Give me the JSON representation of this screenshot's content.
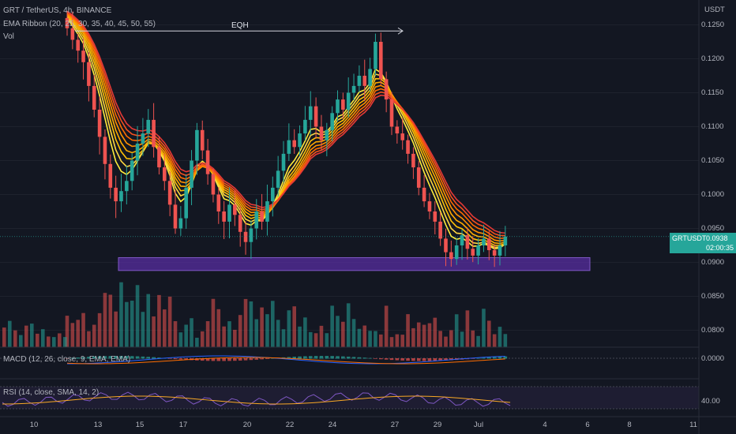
{
  "header": {
    "symbol_line": "GRT / TetherUS, 4h, BINANCE",
    "ema_ribbon": "EMA Ribbon (20, 25, 30, 35, 40, 45, 50, 55)",
    "vol": "Vol",
    "currency": "USDT"
  },
  "annotation": {
    "eqh": "EQH"
  },
  "price_axis": {
    "ticks": [
      "0.1250",
      "0.1200",
      "0.1150",
      "0.1100",
      "0.1050",
      "0.1000",
      "0.0950",
      "0.0900",
      "0.0850",
      "0.0800"
    ]
  },
  "macd": {
    "label": "MACD (12, 26, close, 9, EMA, EMA)",
    "value": "0.0000"
  },
  "rsi": {
    "label": "RSI (14, close, SMA, 14, 2)",
    "value": "40.00"
  },
  "time_axis": {
    "ticks": [
      "10",
      "13",
      "15",
      "17",
      "20",
      "22",
      "24",
      "27",
      "29",
      "Jul",
      "4",
      "6",
      "8",
      "11"
    ]
  },
  "current_price": {
    "symbol": "GRTUSDT",
    "price": "0.0938",
    "countdown": "02:00:35"
  },
  "colors": {
    "background": "#131722",
    "up": "#26a69a",
    "down": "#ef5350",
    "zone": "#5b2fa8",
    "tag": "#26a69a"
  },
  "chart_data": {
    "type": "candlestick",
    "interval": "4h",
    "y_range": [
      0.0775,
      0.1275
    ],
    "zone": [
      0.0888,
      0.0907
    ],
    "eqh_level": 0.1241,
    "last_price": 0.0938,
    "closes": [
      0.1245,
      0.1228,
      0.1212,
      0.1195,
      0.116,
      0.1125,
      0.1085,
      0.1045,
      0.101,
      0.099,
      0.1005,
      0.102,
      0.105,
      0.1075,
      0.109,
      0.111,
      0.107,
      0.104,
      0.102,
      0.0985,
      0.095,
      0.0965,
      0.101,
      0.105,
      0.1095,
      0.1065,
      0.103,
      0.1,
      0.0975,
      0.096,
      0.0985,
      0.097,
      0.0945,
      0.093,
      0.095,
      0.0975,
      0.096,
      0.099,
      0.101,
      0.1035,
      0.106,
      0.108,
      0.107,
      0.109,
      0.111,
      0.113,
      0.11,
      0.108,
      0.1095,
      0.112,
      0.114,
      0.1125,
      0.115,
      0.116,
      0.1175,
      0.116,
      0.1185,
      0.1225,
      0.117,
      0.114,
      0.11,
      0.109,
      0.108,
      0.106,
      0.104,
      0.101,
      0.099,
      0.0975,
      0.096,
      0.0935,
      0.0915,
      0.0905,
      0.0925,
      0.094,
      0.092,
      0.091,
      0.0925,
      0.0935,
      0.0918,
      0.091,
      0.0925,
      0.0938
    ]
  }
}
